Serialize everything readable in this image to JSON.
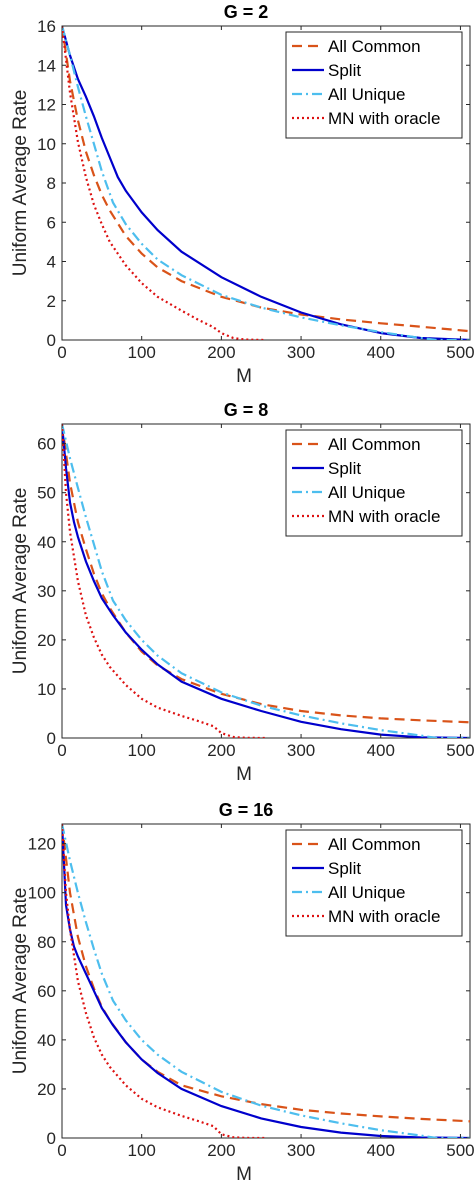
{
  "chart_data": [
    {
      "type": "line",
      "title": "G =  2",
      "xlabel": "M",
      "ylabel": "Uniform Average Rate",
      "xlim": [
        0,
        512
      ],
      "ylim": [
        0,
        16
      ],
      "xticks": [
        0,
        100,
        200,
        300,
        400,
        500
      ],
      "xtick_labels": [
        "0",
        "100",
        "200",
        "300",
        "400",
        "500"
      ],
      "yticks": [
        0,
        2,
        4,
        6,
        8,
        10,
        12,
        14,
        16
      ],
      "ytick_labels": [
        "0",
        "2",
        "4",
        "6",
        "8",
        "10",
        "12",
        "14",
        "16"
      ],
      "grid": false,
      "legend_position": "top-right",
      "series": [
        {
          "name": "All Common",
          "color": "#D95319",
          "dash": "dashed",
          "x": [
            0,
            10,
            20,
            30,
            40,
            50,
            60,
            80,
            100,
            120,
            150,
            200,
            250,
            300,
            350,
            400,
            450,
            512
          ],
          "y": [
            16,
            13.2,
            11.2,
            9.6,
            8.4,
            7.4,
            6.6,
            5.3,
            4.4,
            3.7,
            3.0,
            2.2,
            1.65,
            1.3,
            1.05,
            0.85,
            0.68,
            0.45
          ]
        },
        {
          "name": "Split",
          "color": "#0000CC",
          "dash": "solid",
          "x": [
            0,
            10,
            20,
            30,
            40,
            50,
            60,
            70,
            80,
            100,
            120,
            150,
            200,
            250,
            300,
            350,
            400,
            450,
            512
          ],
          "y": [
            16,
            14.5,
            13.3,
            12.4,
            11.4,
            10.3,
            9.3,
            8.3,
            7.6,
            6.5,
            5.6,
            4.5,
            3.2,
            2.2,
            1.4,
            0.8,
            0.35,
            0.1,
            0
          ]
        },
        {
          "name": "All Unique",
          "color": "#4DBEEE",
          "dash": "dashdot",
          "x": [
            0,
            10,
            20,
            30,
            40,
            50,
            64,
            80,
            100,
            120,
            150,
            200,
            250,
            300,
            350,
            400,
            450,
            470,
            512
          ],
          "y": [
            16,
            14.5,
            12.9,
            11.4,
            10.0,
            8.6,
            7.0,
            5.9,
            4.9,
            4.1,
            3.3,
            2.3,
            1.65,
            1.15,
            0.75,
            0.4,
            0.1,
            0,
            0
          ]
        },
        {
          "name": "MN with oracle",
          "color": "#DD1111",
          "dash": "dotted",
          "x": [
            0,
            10,
            20,
            30,
            40,
            50,
            60,
            80,
            100,
            120,
            150,
            170,
            190,
            200,
            215,
            230,
            256
          ],
          "y": [
            16,
            12.6,
            10.1,
            8.3,
            6.9,
            5.9,
            5.0,
            3.8,
            2.9,
            2.2,
            1.5,
            1.05,
            0.65,
            0.35,
            0.1,
            0.02,
            0
          ]
        }
      ]
    },
    {
      "type": "line",
      "title": "G =  8",
      "xlabel": "M",
      "ylabel": "Uniform Average Rate",
      "xlim": [
        0,
        512
      ],
      "ylim": [
        0,
        64
      ],
      "xticks": [
        0,
        100,
        200,
        300,
        400,
        500
      ],
      "xtick_labels": [
        "0",
        "100",
        "200",
        "300",
        "400",
        "500"
      ],
      "yticks": [
        0,
        10,
        20,
        30,
        40,
        50,
        60
      ],
      "ytick_labels": [
        "0",
        "10",
        "20",
        "30",
        "40",
        "50",
        "60"
      ],
      "grid": false,
      "legend_position": "top-right",
      "series": [
        {
          "name": "All Common",
          "color": "#D95319",
          "dash": "dashed",
          "x": [
            0,
            10,
            20,
            30,
            40,
            50,
            60,
            80,
            100,
            120,
            150,
            200,
            250,
            300,
            350,
            400,
            450,
            512
          ],
          "y": [
            64,
            52,
            44,
            38.5,
            33.5,
            29.5,
            26.5,
            21.5,
            17.6,
            14.8,
            12,
            9,
            6.9,
            5.5,
            4.6,
            4.0,
            3.6,
            3.2
          ]
        },
        {
          "name": "Split",
          "color": "#0000CC",
          "dash": "solid",
          "x": [
            0,
            5,
            10,
            15,
            20,
            30,
            40,
            50,
            64,
            80,
            100,
            120,
            150,
            200,
            250,
            300,
            350,
            400,
            450,
            512
          ],
          "y": [
            64,
            55,
            48,
            44,
            41,
            36,
            32,
            28.5,
            25,
            21.5,
            18,
            15,
            11.5,
            8.0,
            5.5,
            3.3,
            1.8,
            0.7,
            0.15,
            0
          ]
        },
        {
          "name": "All Unique",
          "color": "#4DBEEE",
          "dash": "dashdot",
          "x": [
            0,
            10,
            20,
            30,
            40,
            50,
            64,
            80,
            100,
            120,
            150,
            200,
            250,
            300,
            350,
            400,
            450,
            470,
            512
          ],
          "y": [
            64,
            57,
            51,
            45,
            39.5,
            34,
            28,
            24,
            20,
            16.8,
            13.2,
            9.3,
            6.6,
            4.6,
            3.0,
            1.6,
            0.5,
            0,
            0
          ]
        },
        {
          "name": "MN with oracle",
          "color": "#DD1111",
          "dash": "dotted",
          "x": [
            0,
            5,
            10,
            20,
            30,
            40,
            50,
            60,
            80,
            100,
            120,
            150,
            170,
            190,
            200,
            215,
            230,
            256
          ],
          "y": [
            64,
            50,
            42,
            32,
            25,
            20.5,
            17,
            14.5,
            10.8,
            8.0,
            6.2,
            4.5,
            3.5,
            2.4,
            1.0,
            0.2,
            0.05,
            0
          ]
        }
      ]
    },
    {
      "type": "line",
      "title": "G =  16",
      "xlabel": "M",
      "ylabel": "Uniform Average Rate",
      "xlim": [
        0,
        512
      ],
      "ylim": [
        0,
        128
      ],
      "xticks": [
        0,
        100,
        200,
        300,
        400,
        500
      ],
      "xtick_labels": [
        "0",
        "100",
        "200",
        "300",
        "400",
        "500"
      ],
      "yticks": [
        0,
        20,
        40,
        60,
        80,
        100,
        120
      ],
      "ytick_labels": [
        "0",
        "20",
        "40",
        "60",
        "80",
        "100",
        "120"
      ],
      "grid": false,
      "legend_position": "top-right",
      "series": [
        {
          "name": "All Common",
          "color": "#D95319",
          "dash": "dashed",
          "x": [
            0,
            10,
            20,
            30,
            40,
            50,
            60,
            80,
            100,
            120,
            150,
            200,
            250,
            300,
            350,
            400,
            450,
            512
          ],
          "y": [
            128,
            100,
            82,
            70,
            61,
            53.5,
            48,
            39,
            32,
            27,
            21.5,
            17,
            13.8,
            11.5,
            10,
            8.8,
            7.8,
            6.8
          ]
        },
        {
          "name": "Split",
          "color": "#0000CC",
          "dash": "solid",
          "x": [
            0,
            5,
            10,
            15,
            20,
            30,
            40,
            50,
            64,
            80,
            100,
            120,
            150,
            200,
            250,
            300,
            350,
            400,
            450,
            512
          ],
          "y": [
            128,
            95,
            85,
            78,
            74,
            67,
            60,
            53,
            46,
            39,
            32,
            26.5,
            20,
            13,
            8,
            4.5,
            2.2,
            0.8,
            0.2,
            0
          ]
        },
        {
          "name": "All Unique",
          "color": "#4DBEEE",
          "dash": "dashdot",
          "x": [
            0,
            10,
            20,
            30,
            40,
            50,
            64,
            80,
            100,
            120,
            150,
            200,
            250,
            300,
            350,
            400,
            450,
            470,
            512
          ],
          "y": [
            128,
            113,
            100,
            88,
            77,
            67,
            56,
            48,
            40,
            34,
            27,
            18.8,
            13.2,
            9.2,
            6.0,
            3.2,
            1.0,
            0,
            0
          ]
        },
        {
          "name": "MN with oracle",
          "color": "#DD1111",
          "dash": "dotted",
          "x": [
            0,
            5,
            10,
            20,
            30,
            40,
            50,
            60,
            80,
            100,
            120,
            150,
            170,
            190,
            200,
            215,
            230,
            256
          ],
          "y": [
            128,
            100,
            85,
            64,
            51,
            41,
            34,
            29,
            21.5,
            16,
            12.5,
            9,
            7,
            4.8,
            1.5,
            0.3,
            0.05,
            0
          ]
        }
      ]
    }
  ]
}
